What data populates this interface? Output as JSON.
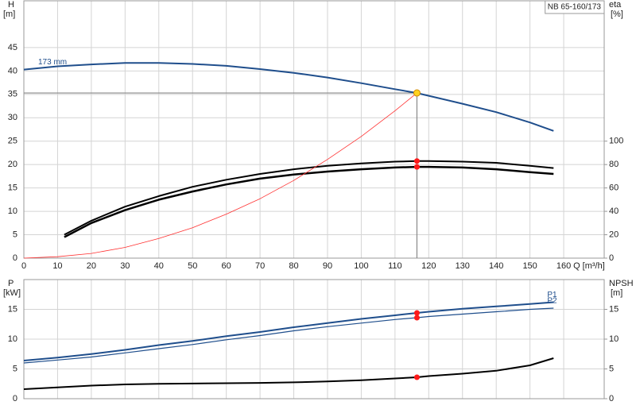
{
  "chart_data": [
    {
      "type": "line",
      "pump_label": "NB 65-160/173",
      "ylabel": "H",
      "yunit": "[m]",
      "y2label": "eta",
      "y2unit": "[%]",
      "xlabel": "Q [m³/h]",
      "xlim": [
        0,
        172
      ],
      "xticks": [
        0,
        10,
        20,
        30,
        40,
        50,
        60,
        70,
        80,
        90,
        100,
        110,
        120,
        130,
        140,
        150,
        160
      ],
      "ylim": [
        0,
        55
      ],
      "yticks": [
        0,
        5,
        10,
        15,
        20,
        25,
        30,
        35,
        40,
        45
      ],
      "y2lim": [
        0,
        220
      ],
      "y2ticks": [
        0,
        20,
        40,
        60,
        80,
        100
      ],
      "grid": true,
      "xtick_labels": true,
      "duty_point": {
        "x": 116.5,
        "y": 35.3
      },
      "series": [
        {
          "name": "173 mm",
          "color": "#1f4e8c",
          "width": 2,
          "label_at": "start",
          "duty_marker": false,
          "x": [
            0,
            10,
            20,
            30,
            40,
            50,
            60,
            70,
            80,
            90,
            100,
            110,
            116.5,
            120,
            130,
            140,
            150,
            157
          ],
          "values": [
            40.3,
            41.0,
            41.4,
            41.7,
            41.7,
            41.5,
            41.1,
            40.4,
            39.6,
            38.6,
            37.4,
            36.1,
            35.3,
            34.7,
            33.0,
            31.2,
            29.0,
            27.2
          ]
        },
        {
          "color": "#000000",
          "width": 2,
          "axis": "y2",
          "duty_marker": true,
          "x": [
            12,
            20,
            30,
            40,
            50,
            60,
            70,
            80,
            90,
            100,
            110,
            116.5,
            120,
            130,
            140,
            150,
            157
          ],
          "values": [
            20,
            32,
            44,
            53,
            61,
            67,
            72,
            76,
            79,
            81,
            82.5,
            83,
            83,
            82.5,
            81.5,
            79,
            77
          ]
        },
        {
          "color": "#000000",
          "width": 2.5,
          "axis": "y2",
          "duty_marker": true,
          "x": [
            12,
            20,
            30,
            40,
            50,
            60,
            70,
            80,
            90,
            100,
            110,
            116.5,
            120,
            130,
            140,
            150,
            157
          ],
          "values": [
            18,
            30,
            41,
            50,
            57,
            63,
            68,
            71.5,
            74,
            76,
            77.5,
            78,
            78,
            77.5,
            76,
            73.5,
            72
          ]
        },
        {
          "color": "#ff3030",
          "width": 0.8,
          "duty_marker": false,
          "x": [
            0,
            10,
            20,
            30,
            40,
            50,
            60,
            70,
            80,
            90,
            100,
            110,
            116.5
          ],
          "values": [
            0,
            0.3,
            1.0,
            2.3,
            4.2,
            6.5,
            9.4,
            12.7,
            16.6,
            21.1,
            26.0,
            31.5,
            35.3
          ]
        }
      ]
    },
    {
      "type": "line",
      "ylabel": "P",
      "yunit": "[kW]",
      "y2label": "NPSH",
      "y2unit": "[m]",
      "xlim": [
        0,
        172
      ],
      "xticks": [
        0,
        10,
        20,
        30,
        40,
        50,
        60,
        70,
        80,
        90,
        100,
        110,
        120,
        130,
        140,
        150,
        160
      ],
      "ylim": [
        0,
        20
      ],
      "yticks": [
        0,
        5,
        10,
        15
      ],
      "y2lim": [
        0,
        20
      ],
      "y2ticks": [
        0,
        5,
        10,
        15
      ],
      "grid": true,
      "xtick_labels": false,
      "duty_point": {
        "x": 116.5
      },
      "series": [
        {
          "name": "P1",
          "color": "#1f4e8c",
          "width": 2,
          "label_at": "end",
          "duty_marker": true,
          "x": [
            0,
            10,
            20,
            30,
            40,
            50,
            60,
            70,
            80,
            90,
            100,
            110,
            116.5,
            120,
            130,
            140,
            150,
            157
          ],
          "values": [
            6.4,
            6.9,
            7.5,
            8.2,
            9.0,
            9.7,
            10.5,
            11.2,
            12.0,
            12.7,
            13.4,
            14.0,
            14.4,
            14.6,
            15.1,
            15.5,
            15.9,
            16.2
          ]
        },
        {
          "name": "P2",
          "color": "#1f4e8c",
          "width": 1.2,
          "label_at": "end",
          "duty_marker": true,
          "x": [
            0,
            10,
            20,
            30,
            40,
            50,
            60,
            70,
            80,
            90,
            100,
            110,
            116.5,
            120,
            130,
            140,
            150,
            157
          ],
          "values": [
            6.0,
            6.5,
            7.0,
            7.7,
            8.4,
            9.1,
            9.9,
            10.6,
            11.4,
            12.1,
            12.7,
            13.3,
            13.6,
            13.8,
            14.2,
            14.6,
            15.0,
            15.2
          ]
        },
        {
          "color": "#000000",
          "width": 2,
          "axis": "y2",
          "duty_marker": true,
          "x": [
            0,
            10,
            20,
            30,
            40,
            50,
            60,
            70,
            80,
            90,
            100,
            110,
            116.5,
            120,
            130,
            140,
            150,
            157
          ],
          "values": [
            1.6,
            1.9,
            2.2,
            2.4,
            2.5,
            2.55,
            2.6,
            2.65,
            2.75,
            2.9,
            3.1,
            3.4,
            3.6,
            3.8,
            4.2,
            4.7,
            5.6,
            6.8
          ]
        }
      ]
    }
  ]
}
